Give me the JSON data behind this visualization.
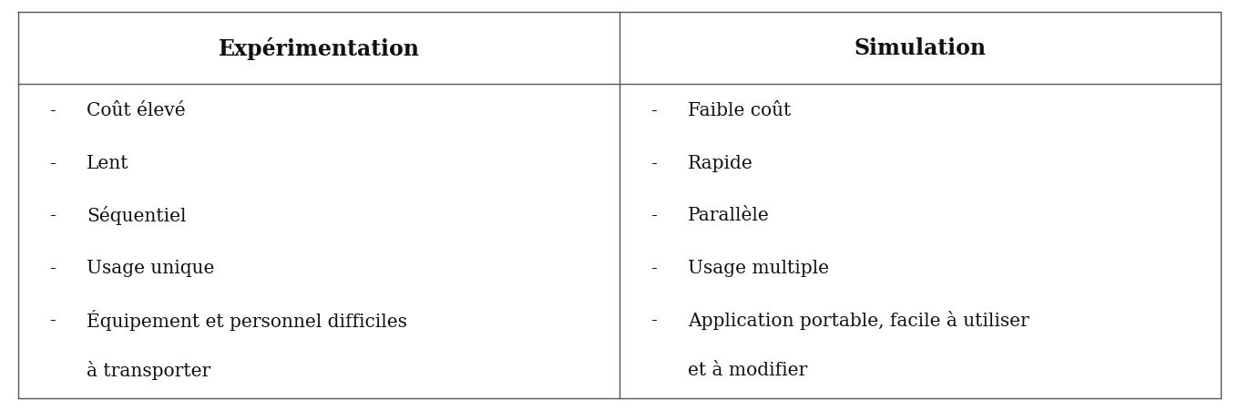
{
  "col1_header": "Expérimentation",
  "col2_header": "Simulation",
  "col1_items": [
    "Coût élevé",
    "Lent",
    "Séquentiel",
    "Usage unique",
    "Équipement et personnel difficiles"
  ],
  "col1_wrap": "à transporter",
  "col2_items": [
    "Faible coût",
    "Rapide",
    "Parallèle",
    "Usage multiple",
    "Application portable, facile à utiliser"
  ],
  "col2_wrap": "et à modifier",
  "bullet": "-",
  "background_color": "#ffffff",
  "header_bg_color": "#ffffff",
  "border_color": "#555555",
  "text_color": "#111111",
  "header_fontsize": 17,
  "body_fontsize": 14.5,
  "fig_width": 13.6,
  "fig_height": 4.52
}
